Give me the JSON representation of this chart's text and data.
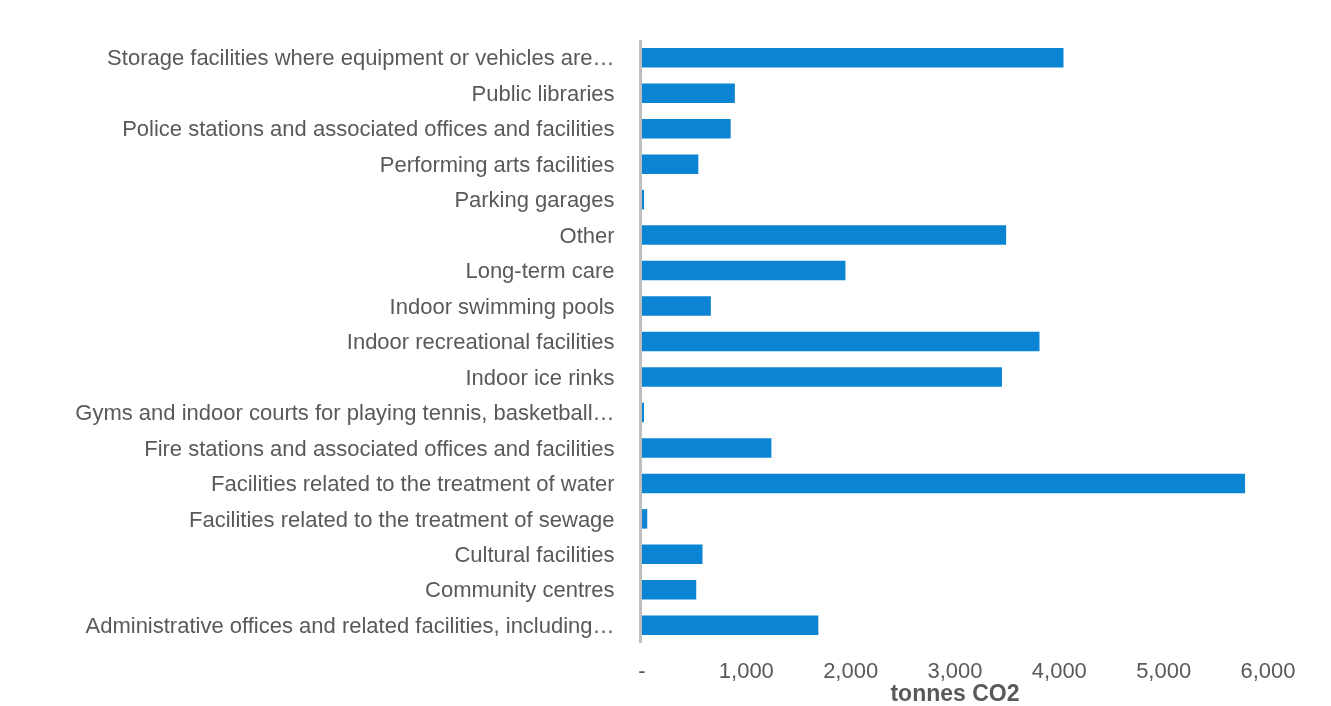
{
  "chart_data": {
    "type": "bar",
    "orientation": "horizontal",
    "xlabel": "tonnes CO2",
    "categories": [
      "Storage facilities where equipment or vehicles are…",
      "Public libraries",
      "Police stations and associated offices and facilities",
      "Performing arts facilities",
      "Parking garages",
      "Other",
      "Long-term care",
      "Indoor swimming pools",
      "Indoor recreational facilities",
      "Indoor ice rinks",
      "Gyms and indoor courts for playing tennis, basketball…",
      "Fire stations and associated offices and facilities",
      "Facilities related to the treatment of water",
      "Facilities related to the treatment of sewage",
      "Cultural facilities",
      "Community centres",
      "Administrative offices and related facilities, including…"
    ],
    "values": [
      4040,
      890,
      850,
      540,
      20,
      3490,
      1950,
      660,
      3810,
      3450,
      10,
      1240,
      5780,
      50,
      580,
      520,
      1690
    ],
    "color": "#0b84d3",
    "xlim": [
      0,
      6000
    ],
    "xticks": [
      {
        "value": 0,
        "label": "-"
      },
      {
        "value": 1000,
        "label": "1,000"
      },
      {
        "value": 2000,
        "label": "2,000"
      },
      {
        "value": 3000,
        "label": "3,000"
      },
      {
        "value": 4000,
        "label": "4,000"
      },
      {
        "value": 5000,
        "label": "5,000"
      },
      {
        "value": 6000,
        "label": "6,000"
      }
    ],
    "grid": false,
    "legend": false
  }
}
